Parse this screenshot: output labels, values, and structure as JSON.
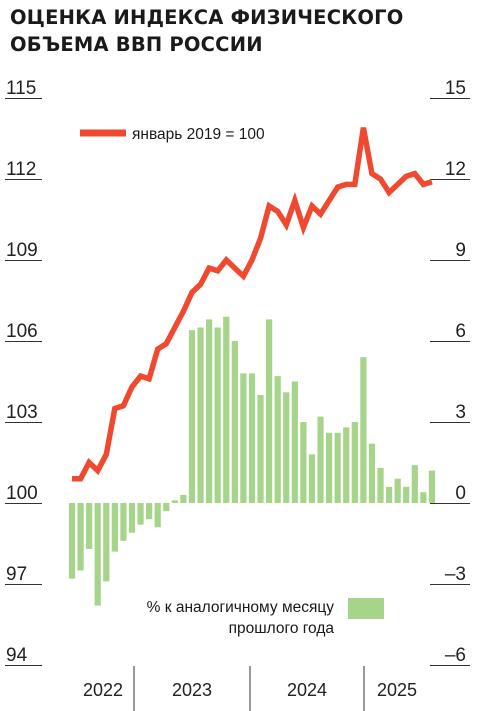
{
  "title_lines": [
    "ОЦЕНКА ИНДЕКСА ФИЗИЧЕСКОГО",
    "ОБЪЕМА ВВП РОССИИ"
  ],
  "chart_data": {
    "type": "line+bar",
    "title": "ОЦЕНКА ИНДЕКСА ФИЗИЧЕСКОГО ОБЪЕМА ВВП РОССИИ",
    "x_years": [
      "2022",
      "2023",
      "2024",
      "2025"
    ],
    "months": [
      "2022-01",
      "2022-02",
      "2022-03",
      "2022-04",
      "2022-05",
      "2022-06",
      "2022-07",
      "2022-08",
      "2022-09",
      "2022-10",
      "2022-11",
      "2022-12",
      "2023-01",
      "2023-02",
      "2023-03",
      "2023-04",
      "2023-05",
      "2023-06",
      "2023-07",
      "2023-08",
      "2023-09",
      "2023-10",
      "2023-11",
      "2023-12",
      "2024-01",
      "2024-02",
      "2024-03",
      "2024-04",
      "2024-05",
      "2024-06",
      "2024-07",
      "2024-08",
      "2024-09",
      "2024-10",
      "2024-11",
      "2024-12",
      "2025-01",
      "2025-02",
      "2025-03",
      "2025-04",
      "2025-05",
      "2025-06",
      "2025-07"
    ],
    "left_axis": {
      "ylim": [
        94,
        115
      ],
      "ticks": [
        "115",
        "112",
        "109",
        "106",
        "103",
        "100",
        "97",
        "94"
      ]
    },
    "right_axis": {
      "ylim": [
        -6,
        15
      ],
      "ticks": [
        "15",
        "12",
        "9",
        "6",
        "3",
        "0",
        "–3",
        "–6"
      ]
    },
    "series": [
      {
        "name": "январь 2019 = 100",
        "kind": "line",
        "axis": "left",
        "color": "#ef4a2f",
        "values": [
          100.9,
          100.9,
          101.5,
          101.2,
          101.8,
          103.5,
          103.6,
          104.3,
          104.7,
          104.6,
          105.7,
          105.9,
          106.5,
          107.1,
          107.8,
          108.1,
          108.7,
          108.6,
          109.0,
          108.7,
          108.4,
          109.0,
          109.8,
          111.0,
          110.8,
          110.3,
          111.2,
          110.2,
          111.0,
          110.7,
          111.2,
          111.7,
          111.8,
          111.8,
          113.9,
          112.2,
          112.0,
          111.5,
          111.8,
          112.1,
          112.2,
          111.8,
          111.9
        ]
      },
      {
        "name": "% к аналогичному месяцу прошлого года",
        "name_lines": [
          "% к аналогичному месяцу",
          "прошлого года"
        ],
        "kind": "bar",
        "axis": "right",
        "color": "#a5d48a",
        "values": [
          -2.8,
          -2.5,
          -1.7,
          -3.8,
          -2.9,
          -1.8,
          -1.4,
          -1.1,
          -0.8,
          -0.6,
          -0.9,
          -0.3,
          0.1,
          0.3,
          6.4,
          6.5,
          6.8,
          6.5,
          6.9,
          6.0,
          4.8,
          4.8,
          4.0,
          6.8,
          4.7,
          4.1,
          4.5,
          3.0,
          1.8,
          3.2,
          2.6,
          2.6,
          2.8,
          3.0,
          5.4,
          2.2,
          1.3,
          0.6,
          0.9,
          0.6,
          1.4,
          0.4,
          1.2
        ]
      }
    ],
    "legend": "top-left (line), bottom-center (bars)",
    "grid": false
  }
}
